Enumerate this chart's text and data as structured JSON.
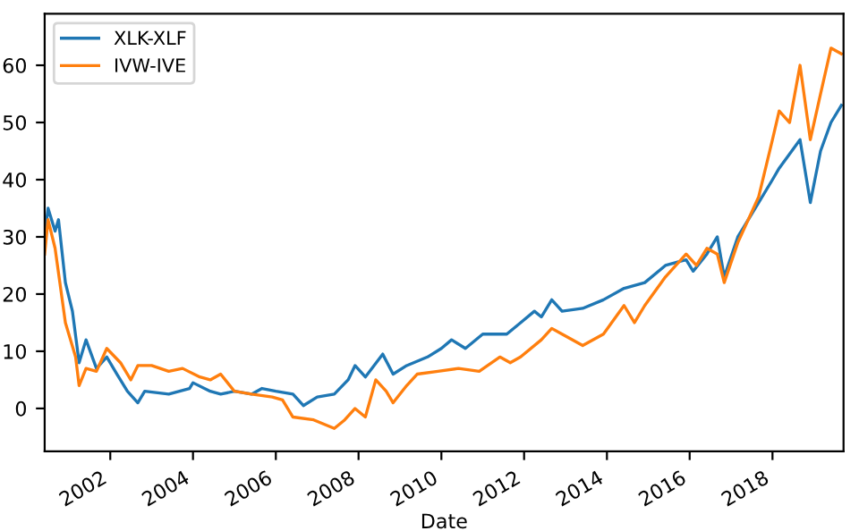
{
  "chart_data": {
    "type": "line",
    "xlabel": "Date",
    "legend": "top left",
    "grid": false,
    "xlim": [
      "2000-06-01",
      "2019-09-20"
    ],
    "ylim": [
      -7.5,
      69
    ],
    "xticks": [
      {
        "value": "2002-01-01",
        "label": "2002"
      },
      {
        "value": "2004-01-01",
        "label": "2004"
      },
      {
        "value": "2006-01-01",
        "label": "2006"
      },
      {
        "value": "2008-01-01",
        "label": "2008"
      },
      {
        "value": "2010-01-01",
        "label": "2010"
      },
      {
        "value": "2012-01-01",
        "label": "2012"
      },
      {
        "value": "2014-01-01",
        "label": "2014"
      },
      {
        "value": "2016-01-01",
        "label": "2016"
      },
      {
        "value": "2018-01-01",
        "label": "2018"
      }
    ],
    "yticks": [
      0,
      10,
      20,
      30,
      40,
      50,
      60
    ],
    "series": [
      {
        "name": "XLK-XLF",
        "color": "#1f77b4",
        "x": [
          "2000-06",
          "2000-07",
          "2000-09",
          "2000-10",
          "2000-12",
          "2001-02",
          "2001-04",
          "2001-06",
          "2001-09",
          "2001-12",
          "2002-03",
          "2002-06",
          "2002-09",
          "2002-11",
          "2003-06",
          "2003-12",
          "2004-01",
          "2004-06",
          "2004-09",
          "2005-01",
          "2005-06",
          "2005-09",
          "2006-01",
          "2006-06",
          "2006-09",
          "2007-01",
          "2007-06",
          "2007-10",
          "2007-12",
          "2008-03",
          "2008-08",
          "2008-11",
          "2009-03",
          "2009-09",
          "2010-01",
          "2010-04",
          "2010-08",
          "2011-01",
          "2011-08",
          "2011-12",
          "2012-04",
          "2012-06",
          "2012-09",
          "2012-12",
          "2013-06",
          "2013-12",
          "2014-06",
          "2014-12",
          "2015-06",
          "2015-12",
          "2016-02",
          "2016-06",
          "2016-09",
          "2016-11",
          "2017-03",
          "2017-09",
          "2018-01",
          "2018-03",
          "2018-09",
          "2018-12",
          "2019-03",
          "2019-06",
          "2019-09"
        ],
        "values": [
          30,
          35,
          31,
          33,
          22,
          17,
          8,
          12,
          7,
          9,
          6,
          3,
          1,
          3,
          2.5,
          3.5,
          4.5,
          3,
          2.5,
          3,
          2.5,
          3.5,
          3,
          2.5,
          0.5,
          2,
          2.5,
          5,
          7.5,
          5.5,
          9.5,
          6,
          7.5,
          9,
          10.5,
          12,
          10.5,
          13,
          13,
          15,
          17,
          16,
          19,
          17,
          17.5,
          19,
          21,
          22,
          25,
          26,
          24,
          27,
          30,
          23,
          30,
          36,
          40,
          42,
          47,
          36,
          45,
          50,
          53
        ]
      },
      {
        "name": "IVW-IVE",
        "color": "#ff7f0e",
        "x": [
          "2000-06",
          "2000-07",
          "2000-09",
          "2000-12",
          "2001-03",
          "2001-04",
          "2001-06",
          "2001-09",
          "2001-12",
          "2002-04",
          "2002-07",
          "2002-09",
          "2003-01",
          "2003-06",
          "2003-10",
          "2004-03",
          "2004-06",
          "2004-09",
          "2005-01",
          "2005-06",
          "2005-12",
          "2006-03",
          "2006-06",
          "2006-12",
          "2007-06",
          "2007-09",
          "2007-12",
          "2008-03",
          "2008-06",
          "2008-09",
          "2008-11",
          "2009-03",
          "2009-06",
          "2009-12",
          "2010-06",
          "2010-12",
          "2011-06",
          "2011-09",
          "2011-12",
          "2012-06",
          "2012-09",
          "2012-12",
          "2013-06",
          "2013-12",
          "2014-06",
          "2014-09",
          "2014-12",
          "2015-06",
          "2015-09",
          "2015-12",
          "2016-03",
          "2016-06",
          "2016-09",
          "2016-11",
          "2017-03",
          "2017-09",
          "2018-01",
          "2018-03",
          "2018-06",
          "2018-09",
          "2018-12",
          "2019-03",
          "2019-06",
          "2019-09"
        ],
        "values": [
          27,
          33,
          28,
          15,
          9,
          4,
          7,
          6.5,
          10.5,
          8,
          5,
          7.5,
          7.5,
          6.5,
          7,
          5.5,
          5,
          6,
          3,
          2.5,
          2,
          1.5,
          -1.5,
          -2,
          -3.5,
          -2,
          0,
          -1.5,
          5,
          3,
          1,
          4,
          6,
          6.5,
          7,
          6.5,
          9,
          8,
          9,
          12,
          14,
          13,
          11,
          13,
          18,
          15,
          18,
          23,
          25,
          27,
          25,
          28,
          27,
          22,
          29,
          37,
          47,
          52,
          50,
          60,
          47,
          55,
          63,
          62
        ]
      }
    ]
  }
}
